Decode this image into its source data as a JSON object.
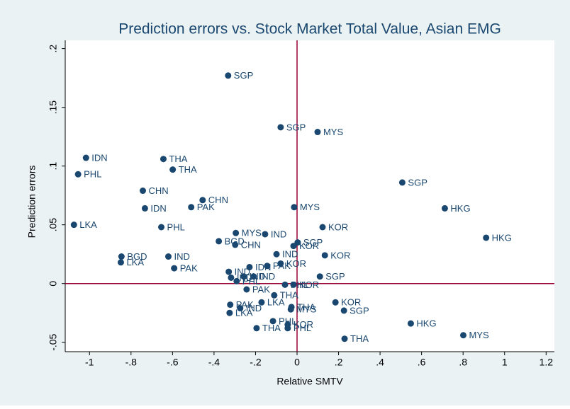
{
  "chart_data": {
    "type": "scatter",
    "title": "Prediction errors vs. Stock Market Total Value, Asian EMG",
    "xlabel": "Relative SMTV",
    "ylabel": "Prediction errors",
    "color": "#1a476f",
    "refline_color": "#990033",
    "xline": 0,
    "yline": 0,
    "xlim": [
      -1.117,
      1.24
    ],
    "ylim": [
      -0.058,
      0.207
    ],
    "xticks": [
      -1,
      {
        "value": -0.8,
        "label": "-.8"
      },
      {
        "value": -0.6,
        "label": "-.6"
      },
      {
        "value": -0.4,
        "label": "-.4"
      },
      {
        "value": -0.2,
        "label": "-.2"
      },
      0,
      {
        "value": 0.2,
        "label": ".2"
      },
      {
        "value": 0.4,
        "label": ".4"
      },
      {
        "value": 0.6,
        "label": ".6"
      },
      {
        "value": 0.8,
        "label": ".8"
      },
      1,
      1.2
    ],
    "yticks": [
      {
        "value": -0.05,
        "label": "-.05"
      },
      0,
      {
        "value": 0.05,
        "label": ".05"
      },
      {
        "value": 0.1,
        "label": ".1"
      },
      {
        "value": 0.15,
        "label": ".15"
      },
      {
        "value": 0.2,
        "label": ".2"
      }
    ],
    "labels": [
      "SGP",
      "SGP",
      "MYS",
      "IDN",
      "THA",
      "PHL",
      "THA",
      "SGP",
      "CHN",
      "CHN",
      "PAK",
      "IDN",
      "MYS",
      "HKG",
      "LKA",
      "PHL",
      "KOR",
      "HKG",
      "MYS",
      "IND",
      "BGD",
      "CHN",
      "SGP",
      "KOR",
      "KOR",
      "IND",
      "BGD",
      "IND",
      "KOR",
      "IDN",
      "PAK",
      "LKA",
      "PAK",
      "IND",
      "IND",
      "IND",
      "IND",
      "PHL",
      "PHL",
      "KOR",
      "SGP",
      "PAK",
      "THA",
      "PAK",
      "IND",
      "LKA",
      "LKA",
      "THA",
      "MYS",
      "PHL",
      "KOR",
      "PHL",
      "THA",
      "KOR",
      "SGP",
      "HKG",
      "MYS",
      "THA"
    ],
    "x": [
      -0.332,
      -0.079,
      0.099,
      -1.017,
      -0.644,
      -1.055,
      -0.599,
      0.507,
      -0.743,
      -0.455,
      -0.51,
      -0.733,
      -0.014,
      0.712,
      -1.075,
      -0.654,
      0.123,
      0.911,
      -0.295,
      -0.154,
      -0.377,
      -0.298,
      0.003,
      -0.017,
      0.134,
      -0.099,
      -0.846,
      -0.62,
      -0.079,
      -0.229,
      -0.144,
      -0.849,
      -0.592,
      -0.329,
      -0.318,
      -0.257,
      -0.209,
      -0.291,
      -0.058,
      -0.017,
      0.11,
      -0.243,
      -0.11,
      -0.322,
      -0.274,
      -0.171,
      -0.325,
      -0.027,
      -0.03,
      -0.116,
      -0.045,
      -0.045,
      -0.195,
      0.185,
      0.226,
      0.548,
      0.801,
      0.229
    ],
    "values": [
      0.177,
      0.133,
      0.129,
      0.107,
      0.106,
      0.093,
      0.097,
      0.086,
      0.079,
      0.071,
      0.065,
      0.064,
      0.065,
      0.064,
      0.05,
      0.048,
      0.048,
      0.039,
      0.043,
      0.042,
      0.036,
      0.033,
      0.035,
      0.032,
      0.024,
      0.025,
      0.023,
      0.023,
      0.017,
      0.014,
      0.015,
      0.018,
      0.013,
      0.01,
      0.005,
      0.006,
      0.006,
      0.002,
      -0.001,
      -0.001,
      0.006,
      -0.005,
      -0.01,
      -0.018,
      -0.021,
      -0.016,
      -0.025,
      -0.02,
      -0.022,
      -0.032,
      -0.035,
      -0.038,
      -0.038,
      -0.016,
      -0.023,
      -0.034,
      -0.044,
      -0.047
    ]
  }
}
